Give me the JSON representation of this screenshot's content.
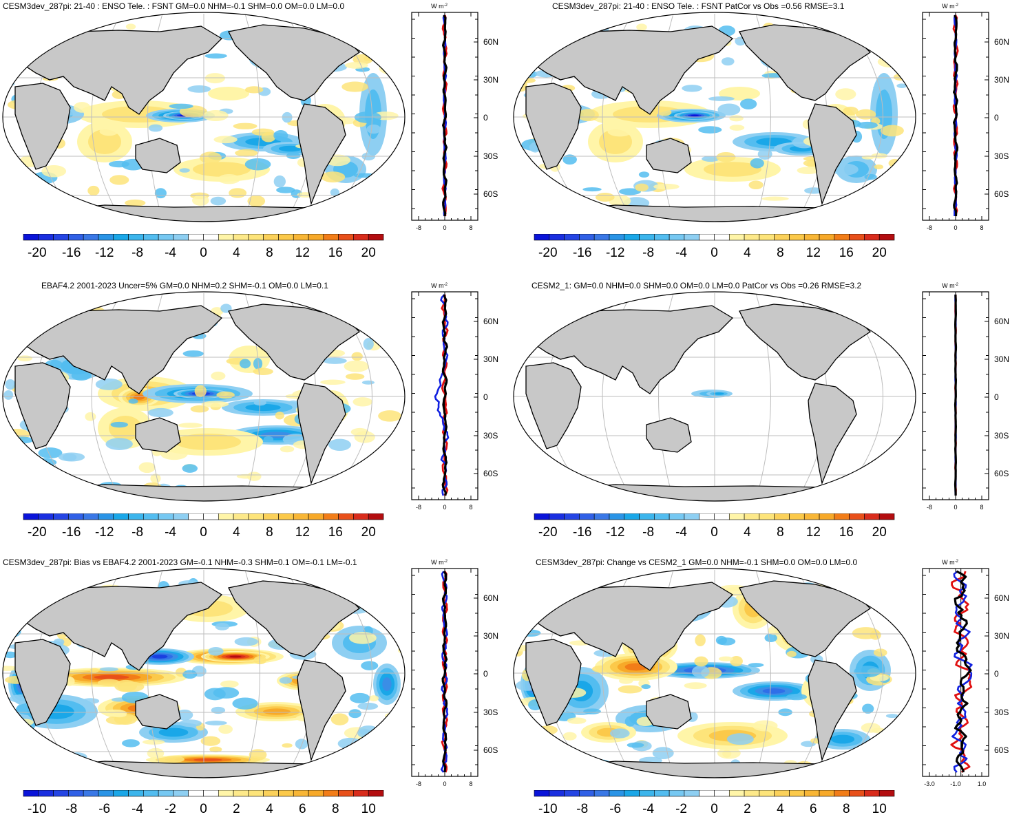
{
  "panels": [
    {
      "id": "model",
      "title": "CESM3dev_287pi: 21-40 : ENSO Tele. : FSNT GM=0.0 NHM=-0.1 SHM=0.0 OM=0.0 LM=0.0",
      "colorbar_labels": [
        "-20",
        "-16",
        "-12",
        "-8",
        "-4",
        "0",
        "4",
        "8",
        "12",
        "16",
        "20"
      ],
      "zonal_xticks": [
        "-8",
        "0",
        "8"
      ],
      "pattern": "model"
    },
    {
      "id": "model-vs-obs",
      "title": "CESM3dev_287pi: 21-40 : ENSO Tele. : FSNT PatCor vs Obs =0.56 RMSE=3.1",
      "colorbar_labels": [
        "-20",
        "-16",
        "-12",
        "-8",
        "-4",
        "0",
        "4",
        "8",
        "12",
        "16",
        "20"
      ],
      "zonal_xticks": [
        "-8",
        "0",
        "8"
      ],
      "pattern": "model"
    },
    {
      "id": "obs",
      "title": "EBAF4.2 2001-2023 Uncer=5% GM=0.0 NHM=0.2 SHM=-0.1 OM=0.0 LM=0.1",
      "colorbar_labels": [
        "-20",
        "-16",
        "-12",
        "-8",
        "-4",
        "0",
        "4",
        "8",
        "12",
        "16",
        "20"
      ],
      "zonal_xticks": [
        "-8",
        "0",
        "8"
      ],
      "pattern": "obs"
    },
    {
      "id": "cesm2",
      "title": "CESM2_1: GM=0.0 NHM=0.0 SHM=0.0 OM=0.0 LM=0.0 PatCor vs Obs =0.26 RMSE=3.2",
      "colorbar_labels": [
        "-20",
        "-16",
        "-12",
        "-8",
        "-4",
        "0",
        "4",
        "8",
        "12",
        "16",
        "20"
      ],
      "zonal_xticks": [
        "-8",
        "0",
        "8"
      ],
      "pattern": "cesm2"
    },
    {
      "id": "bias",
      "title": "CESM3dev_287pi: Bias vs EBAF4.2 2001-2023 GM=-0.1 NHM=-0.3 SHM=0.1 OM=-0.1 LM=-0.1",
      "colorbar_labels": [
        "-10",
        "-8",
        "-6",
        "-4",
        "-2",
        "0",
        "2",
        "4",
        "6",
        "8",
        "10"
      ],
      "zonal_xticks": [
        "-8",
        "0",
        "8"
      ],
      "pattern": "bias"
    },
    {
      "id": "change",
      "title": "CESM3dev_287pi: Change vs CESM2_1 GM=0.0 NHM=-0.1 SHM=0.0 OM=0.0 LM=0.0",
      "colorbar_labels": [
        "-10",
        "-8",
        "-6",
        "-4",
        "-2",
        "0",
        "2",
        "4",
        "6",
        "8",
        "10"
      ],
      "zonal_xticks": [
        "-3.0",
        "-1.0",
        "1.0"
      ],
      "pattern": "change"
    }
  ],
  "zonal_lat_labels": [
    "60N",
    "30N",
    "0",
    "30S",
    "60S"
  ],
  "zonal_units": "W m",
  "zonal_units_sup": "-2",
  "colors": {
    "land": "#c8c8c8",
    "neg": [
      "#0a14d9",
      "#1a3fe0",
      "#2f6fe8",
      "#3a8ee6",
      "#1aa7e8",
      "#53bdf0",
      "#8ecff2",
      "#ffffff"
    ],
    "pos": [
      "#ffffff",
      "#fff5a8",
      "#fde47a",
      "#fbc94a",
      "#f7a929",
      "#f27d18",
      "#e8501a",
      "#d92c1c",
      "#b30d10"
    ]
  }
}
